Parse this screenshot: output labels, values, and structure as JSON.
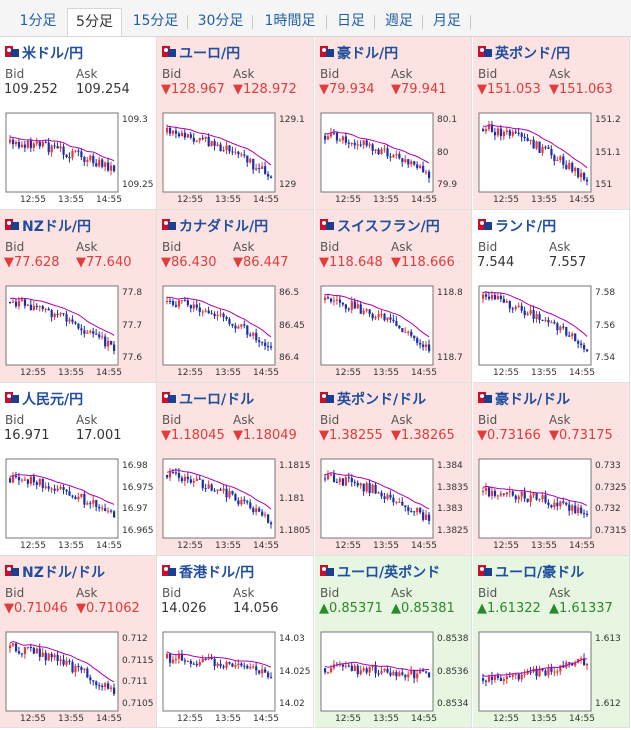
{
  "tabs": [
    {
      "label": "1分足",
      "active": false
    },
    {
      "label": "5分足",
      "active": true
    },
    {
      "label": "15分足",
      "active": false
    },
    {
      "label": "30分足",
      "active": false
    },
    {
      "label": "1時間足",
      "active": false
    },
    {
      "label": "日足",
      "active": false
    },
    {
      "label": "週足",
      "active": false
    },
    {
      "label": "月足",
      "active": false
    }
  ],
  "labels": {
    "bid": "Bid",
    "ask": "Ask"
  },
  "colors": {
    "down": "#e23b3b",
    "up": "#2a8a2a",
    "ma": "#b000b0",
    "bull": "#e23b3b",
    "bear": "#1c2fa8"
  },
  "pairs": [
    {
      "name": "米ドル/円",
      "trend": "flat",
      "bid": "109.252",
      "ask": "109.254",
      "yticks": [
        "109.3",
        "109.25"
      ],
      "xticks": [
        "12:55",
        "13:55",
        "14:55"
      ]
    },
    {
      "name": "ユーロ/円",
      "trend": "down",
      "bid": "128.967",
      "ask": "128.972",
      "yticks": [
        "129.1",
        "129"
      ],
      "xticks": [
        "12:55",
        "13:55",
        "14:55"
      ]
    },
    {
      "name": "豪ドル/円",
      "trend": "down",
      "bid": "79.934",
      "ask": "79.941",
      "yticks": [
        "80.1",
        "80",
        "79.9"
      ],
      "xticks": [
        "12:55",
        "13:55",
        "14:55"
      ]
    },
    {
      "name": "英ポンド/円",
      "trend": "down",
      "bid": "151.053",
      "ask": "151.063",
      "yticks": [
        "151.2",
        "151.1",
        "151"
      ],
      "xticks": [
        "12:55",
        "13:55",
        "14:55"
      ]
    },
    {
      "name": "NZドル/円",
      "trend": "down",
      "bid": "77.628",
      "ask": "77.640",
      "yticks": [
        "77.8",
        "77.7",
        "77.6"
      ],
      "xticks": [
        "12:55",
        "13:55",
        "14:55"
      ]
    },
    {
      "name": "カナダドル/円",
      "trend": "down",
      "bid": "86.430",
      "ask": "86.447",
      "yticks": [
        "86.5",
        "86.45",
        "86.4"
      ],
      "xticks": [
        "12:55",
        "13:55",
        "14:55"
      ]
    },
    {
      "name": "スイスフラン/円",
      "trend": "down",
      "bid": "118.648",
      "ask": "118.666",
      "yticks": [
        "118.8",
        "118.7"
      ],
      "xticks": [
        "12:55",
        "13:55",
        "14:55"
      ]
    },
    {
      "name": "ランド/円",
      "trend": "flat",
      "bid": "7.544",
      "ask": "7.557",
      "yticks": [
        "7.58",
        "7.56",
        "7.54"
      ],
      "xticks": [
        "12:55",
        "13:55",
        "14:55"
      ]
    },
    {
      "name": "人民元/円",
      "trend": "flat",
      "bid": "16.971",
      "ask": "17.001",
      "yticks": [
        "16.98",
        "16.975",
        "16.97",
        "16.965"
      ],
      "xticks": [
        "12:55",
        "13:55",
        "14:55"
      ]
    },
    {
      "name": "ユーロ/ドル",
      "trend": "down",
      "bid": "1.18045",
      "ask": "1.18049",
      "yticks": [
        "1.1815",
        "1.181",
        "1.1805"
      ],
      "xticks": [
        "12:55",
        "13:55",
        "14:55"
      ]
    },
    {
      "name": "英ポンド/ドル",
      "trend": "down",
      "bid": "1.38255",
      "ask": "1.38265",
      "yticks": [
        "1.384",
        "1.3835",
        "1.383",
        "1.3825"
      ],
      "xticks": [
        "12:55",
        "13:55",
        "14:55"
      ]
    },
    {
      "name": "豪ドル/ドル",
      "trend": "down",
      "bid": "0.73166",
      "ask": "0.73175",
      "yticks": [
        "0.733",
        "0.7325",
        "0.732",
        "0.7315"
      ],
      "xticks": [
        "12:55",
        "13:55",
        "14:55"
      ]
    },
    {
      "name": "NZドル/ドル",
      "trend": "down",
      "bid": "0.71046",
      "ask": "0.71062",
      "yticks": [
        "0.712",
        "0.7115",
        "0.711",
        "0.7105"
      ],
      "xticks": [
        "12:55",
        "13:55",
        "14:55"
      ]
    },
    {
      "name": "香港ドル/円",
      "trend": "flat",
      "bid": "14.026",
      "ask": "14.056",
      "yticks": [
        "14.03",
        "14.025",
        "14.02"
      ],
      "xticks": [
        "12:55",
        "13:55",
        "14:55"
      ]
    },
    {
      "name": "ユーロ/英ポンド",
      "trend": "up",
      "bid": "0.85371",
      "ask": "0.85381",
      "yticks": [
        "0.8538",
        "0.8536",
        "0.8534"
      ],
      "xticks": [
        "12:55",
        "13:55",
        "14:55"
      ]
    },
    {
      "name": "ユーロ/豪ドル",
      "trend": "up",
      "bid": "1.61322",
      "ask": "1.61337",
      "yticks": [
        "1.613",
        "1.612"
      ],
      "xticks": [
        "12:55",
        "13:55",
        "14:55"
      ]
    }
  ]
}
